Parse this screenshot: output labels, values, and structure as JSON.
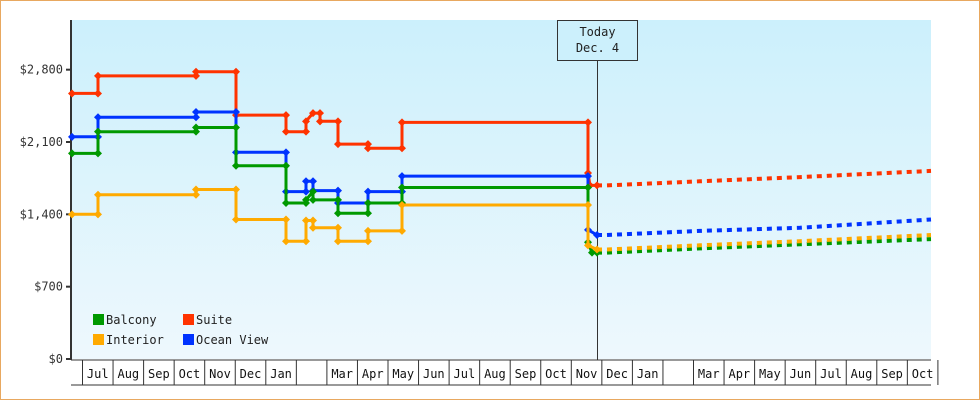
{
  "chart_data": {
    "type": "line",
    "title": "",
    "xlabel": "",
    "ylabel": "",
    "ylim": [
      0,
      3400
    ],
    "y_ticks": [
      {
        "label": "$0",
        "value": 0
      },
      {
        "label": "$700",
        "value": 700
      },
      {
        "label": "$1,400",
        "value": 1400
      },
      {
        "label": "$2,100",
        "value": 2100
      },
      {
        "label": "$2,800",
        "value": 2800
      }
    ],
    "x_tick_labels": [
      "Jul",
      "Aug",
      "Sep",
      "Oct",
      "Nov",
      "Dec",
      "Jan",
      "",
      "Mar",
      "Apr",
      "May",
      "Jun",
      "Jul",
      "Aug",
      "Sep",
      "Oct",
      "Nov",
      "Dec",
      "Jan",
      "",
      "Mar",
      "Apr",
      "May",
      "Jun",
      "Jul",
      "Aug",
      "Sep",
      "Oct"
    ],
    "grid": false,
    "legend_position": "bottom-left inside plot",
    "annotation": {
      "line1": "Today",
      "line2": "Dec. 4"
    },
    "series": [
      {
        "name": "Suite",
        "color": "#ff3300",
        "historical": [
          [
            72,
            2570
          ],
          [
            98,
            2570
          ],
          [
            98,
            2740
          ],
          [
            196,
            2740
          ],
          [
            196,
            2780
          ],
          [
            236,
            2780
          ],
          [
            236,
            2360
          ],
          [
            286,
            2360
          ],
          [
            286,
            2200
          ],
          [
            306,
            2200
          ],
          [
            306,
            2300
          ],
          [
            313,
            2380
          ],
          [
            320,
            2380
          ],
          [
            320,
            2300
          ],
          [
            338,
            2300
          ],
          [
            338,
            2080
          ],
          [
            368,
            2080
          ],
          [
            368,
            2040
          ],
          [
            402,
            2040
          ],
          [
            402,
            2290
          ],
          [
            588,
            2290
          ],
          [
            588,
            1800
          ],
          [
            590,
            1680
          ],
          [
            597,
            1680
          ]
        ],
        "forecast": [
          [
            607,
            1680
          ],
          [
            700,
            1720
          ],
          [
            800,
            1760
          ],
          [
            931,
            1820
          ]
        ]
      },
      {
        "name": "Ocean View",
        "color": "#0033ff",
        "historical": [
          [
            72,
            2150
          ],
          [
            98,
            2150
          ],
          [
            98,
            2340
          ],
          [
            196,
            2340
          ],
          [
            196,
            2390
          ],
          [
            236,
            2390
          ],
          [
            236,
            2000
          ],
          [
            286,
            2000
          ],
          [
            286,
            1620
          ],
          [
            306,
            1620
          ],
          [
            306,
            1720
          ],
          [
            313,
            1720
          ],
          [
            313,
            1630
          ],
          [
            338,
            1630
          ],
          [
            338,
            1510
          ],
          [
            368,
            1510
          ],
          [
            368,
            1620
          ],
          [
            402,
            1620
          ],
          [
            402,
            1770
          ],
          [
            588,
            1770
          ],
          [
            588,
            1250
          ],
          [
            597,
            1200
          ]
        ],
        "forecast": [
          [
            607,
            1200
          ],
          [
            700,
            1240
          ],
          [
            800,
            1270
          ],
          [
            931,
            1350
          ]
        ]
      },
      {
        "name": "Balcony",
        "color": "#009900",
        "historical": [
          [
            72,
            1990
          ],
          [
            98,
            1990
          ],
          [
            98,
            2200
          ],
          [
            196,
            2200
          ],
          [
            196,
            2240
          ],
          [
            236,
            2240
          ],
          [
            236,
            1870
          ],
          [
            286,
            1870
          ],
          [
            286,
            1510
          ],
          [
            306,
            1510
          ],
          [
            306,
            1540
          ],
          [
            313,
            1620
          ],
          [
            313,
            1540
          ],
          [
            338,
            1540
          ],
          [
            338,
            1410
          ],
          [
            368,
            1410
          ],
          [
            368,
            1510
          ],
          [
            402,
            1510
          ],
          [
            402,
            1660
          ],
          [
            588,
            1660
          ],
          [
            588,
            1130
          ],
          [
            592,
            1030
          ],
          [
            597,
            1030
          ]
        ],
        "forecast": [
          [
            607,
            1030
          ],
          [
            700,
            1070
          ],
          [
            800,
            1110
          ],
          [
            931,
            1160
          ]
        ]
      },
      {
        "name": "Interior",
        "color": "#ffaa00",
        "historical": [
          [
            72,
            1400
          ],
          [
            98,
            1400
          ],
          [
            98,
            1590
          ],
          [
            196,
            1590
          ],
          [
            196,
            1640
          ],
          [
            236,
            1640
          ],
          [
            236,
            1350
          ],
          [
            286,
            1350
          ],
          [
            286,
            1140
          ],
          [
            306,
            1140
          ],
          [
            306,
            1340
          ],
          [
            313,
            1340
          ],
          [
            313,
            1270
          ],
          [
            338,
            1270
          ],
          [
            338,
            1140
          ],
          [
            368,
            1140
          ],
          [
            368,
            1240
          ],
          [
            402,
            1240
          ],
          [
            402,
            1490
          ],
          [
            588,
            1490
          ],
          [
            588,
            1100
          ],
          [
            597,
            1060
          ]
        ],
        "forecast": [
          [
            607,
            1060
          ],
          [
            700,
            1100
          ],
          [
            800,
            1140
          ],
          [
            931,
            1200
          ]
        ]
      }
    ]
  },
  "legend": {
    "items": [
      {
        "label": "Balcony",
        "color": "#009900"
      },
      {
        "label": "Suite",
        "color": "#ff3300"
      },
      {
        "label": "Interior",
        "color": "#ffaa00"
      },
      {
        "label": "Ocean View",
        "color": "#0033ff"
      }
    ]
  },
  "today": {
    "line1": "Today",
    "line2": "Dec. 4"
  }
}
